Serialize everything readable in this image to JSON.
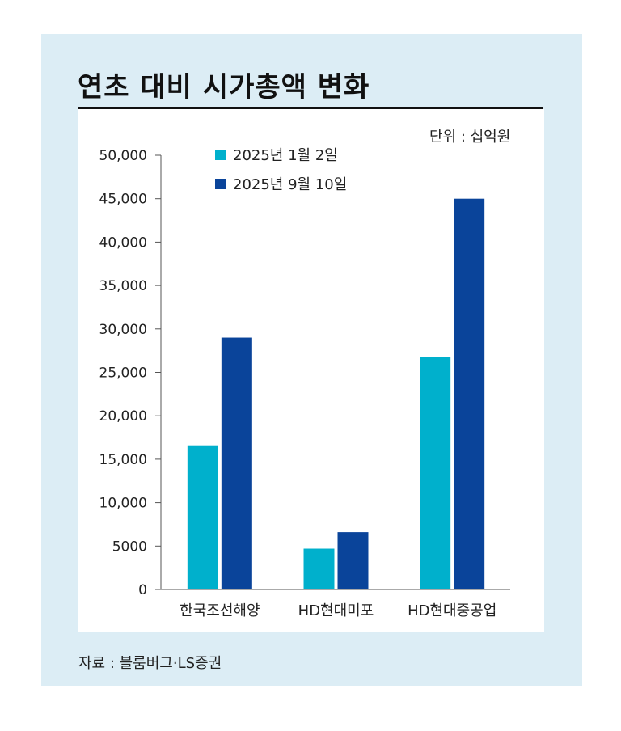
{
  "title": "연초 대비 시가총액 변화",
  "unit_label": "단위 :  십억원",
  "source": "자료 : 블룸버그·LS증권",
  "colors": {
    "panel_bg": "#dcedf5",
    "series_1": "#00b0cc",
    "series_2": "#0a449a"
  },
  "chart_data": {
    "type": "bar",
    "categories": [
      "한국조선해양",
      "HD현대미포",
      "HD현대중공업"
    ],
    "series": [
      {
        "name": "2025년 1월 2일",
        "values": [
          16600,
          4700,
          26800
        ]
      },
      {
        "name": "2025년 9월 10일",
        "values": [
          29000,
          6600,
          45000
        ]
      }
    ],
    "yticks": [
      "0",
      "5000",
      "10,000",
      "15,000",
      "20,000",
      "25,000",
      "30,000",
      "35,000",
      "40,000",
      "45,000",
      "50,000"
    ],
    "ylim": [
      0,
      50000
    ],
    "legend_position": "top-left"
  }
}
